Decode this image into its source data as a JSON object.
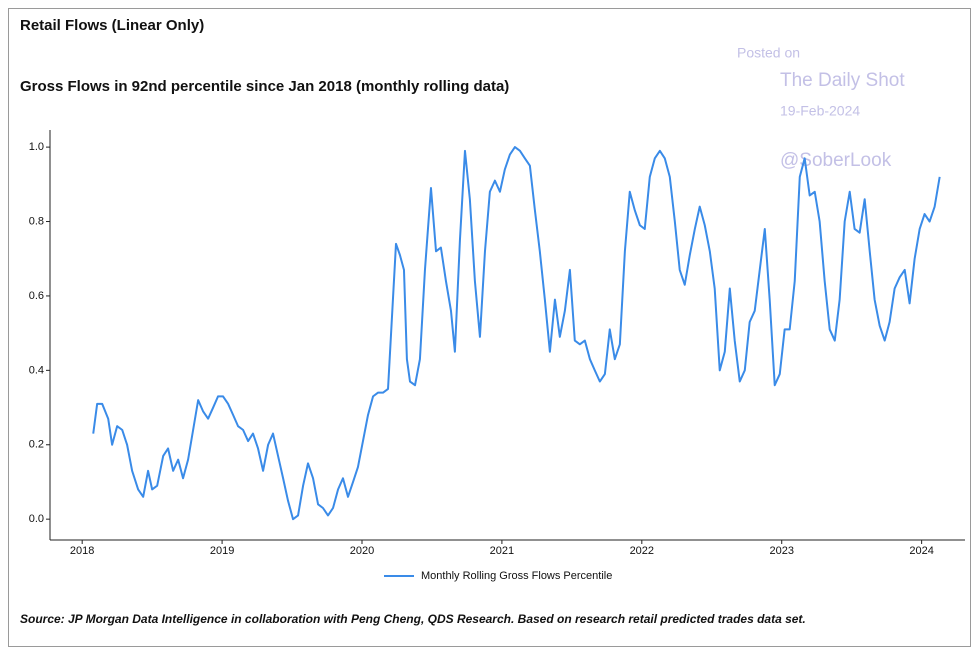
{
  "chart_data": {
    "type": "line",
    "title": "Retail Flows (Linear Only)",
    "subtitle": "Gross Flows in 92nd percentile since Jan 2018 (monthly rolling data)",
    "annotations": [
      "Posted on",
      "The Daily Shot",
      "19-Feb-2024",
      "@SoberLook"
    ],
    "source": "Source: JP Morgan Data Intelligence in collaboration with Peng Cheng, QDS Research. Based on research retail predicted trades data set.",
    "x": [
      2018.079,
      2018.107,
      2018.143,
      2018.186,
      2018.214,
      2018.25,
      2018.286,
      2018.321,
      2018.357,
      2018.4,
      2018.436,
      2018.471,
      2018.5,
      2018.536,
      2018.579,
      2018.614,
      2018.65,
      2018.686,
      2018.721,
      2018.757,
      2018.793,
      2018.829,
      2018.864,
      2018.9,
      2018.936,
      2018.971,
      2019.007,
      2019.043,
      2019.079,
      2019.114,
      2019.15,
      2019.186,
      2019.221,
      2019.257,
      2019.293,
      2019.329,
      2019.364,
      2019.4,
      2019.436,
      2019.471,
      2019.507,
      2019.543,
      2019.579,
      2019.614,
      2019.65,
      2019.686,
      2019.721,
      2019.757,
      2019.793,
      2019.829,
      2019.864,
      2019.9,
      2019.936,
      2019.971,
      2020.007,
      2020.043,
      2020.079,
      2020.114,
      2020.15,
      2020.186,
      2020.221,
      2020.243,
      2020.271,
      2020.3,
      2020.321,
      2020.343,
      2020.379,
      2020.414,
      2020.45,
      2020.493,
      2020.529,
      2020.564,
      2020.6,
      2020.636,
      2020.664,
      2020.7,
      2020.736,
      2020.771,
      2020.807,
      2020.843,
      2020.879,
      2020.914,
      2020.95,
      2020.986,
      2021.021,
      2021.057,
      2021.093,
      2021.129,
      2021.164,
      2021.2,
      2021.236,
      2021.271,
      2021.307,
      2021.343,
      2021.379,
      2021.414,
      2021.45,
      2021.486,
      2021.521,
      2021.557,
      2021.593,
      2021.629,
      2021.664,
      2021.7,
      2021.736,
      2021.771,
      2021.807,
      2021.843,
      2021.879,
      2021.914,
      2021.95,
      2021.986,
      2022.021,
      2022.057,
      2022.093,
      2022.129,
      2022.164,
      2022.2,
      2022.236,
      2022.271,
      2022.307,
      2022.343,
      2022.379,
      2022.414,
      2022.45,
      2022.486,
      2022.521,
      2022.557,
      2022.593,
      2022.629,
      2022.664,
      2022.7,
      2022.736,
      2022.771,
      2022.807,
      2022.843,
      2022.879,
      2022.914,
      2022.95,
      2022.986,
      2023.021,
      2023.057,
      2023.093,
      2023.129,
      2023.164,
      2023.2,
      2023.236,
      2023.271,
      2023.307,
      2023.343,
      2023.379,
      2023.414,
      2023.45,
      2023.486,
      2023.521,
      2023.557,
      2023.593,
      2023.629,
      2023.664,
      2023.7,
      2023.736,
      2023.771,
      2023.807,
      2023.843,
      2023.879,
      2023.914,
      2023.95,
      2023.986,
      2024.021,
      2024.057,
      2024.093,
      2024.129
    ],
    "series": [
      {
        "name": "Monthly Rolling Gross Flows Percentile",
        "color": "#3a8be8",
        "values": [
          0.23,
          0.31,
          0.31,
          0.27,
          0.2,
          0.25,
          0.24,
          0.2,
          0.13,
          0.08,
          0.06,
          0.13,
          0.08,
          0.09,
          0.17,
          0.19,
          0.13,
          0.16,
          0.11,
          0.16,
          0.24,
          0.32,
          0.29,
          0.27,
          0.3,
          0.33,
          0.33,
          0.31,
          0.28,
          0.25,
          0.24,
          0.21,
          0.23,
          0.19,
          0.13,
          0.2,
          0.23,
          0.17,
          0.11,
          0.05,
          0.0,
          0.01,
          0.09,
          0.15,
          0.11,
          0.04,
          0.03,
          0.01,
          0.03,
          0.08,
          0.11,
          0.06,
          0.1,
          0.14,
          0.21,
          0.28,
          0.33,
          0.34,
          0.34,
          0.35,
          0.59,
          0.74,
          0.71,
          0.67,
          0.43,
          0.37,
          0.36,
          0.43,
          0.67,
          0.89,
          0.72,
          0.73,
          0.64,
          0.56,
          0.45,
          0.75,
          0.99,
          0.86,
          0.64,
          0.49,
          0.72,
          0.88,
          0.91,
          0.88,
          0.94,
          0.98,
          1.0,
          0.99,
          0.97,
          0.95,
          0.83,
          0.72,
          0.59,
          0.45,
          0.59,
          0.49,
          0.56,
          0.67,
          0.48,
          0.47,
          0.48,
          0.43,
          0.4,
          0.37,
          0.39,
          0.51,
          0.43,
          0.47,
          0.72,
          0.88,
          0.83,
          0.79,
          0.78,
          0.92,
          0.97,
          0.99,
          0.97,
          0.92,
          0.8,
          0.67,
          0.63,
          0.71,
          0.78,
          0.84,
          0.79,
          0.72,
          0.62,
          0.4,
          0.45,
          0.62,
          0.48,
          0.37,
          0.4,
          0.53,
          0.56,
          0.67,
          0.78,
          0.59,
          0.36,
          0.39,
          0.51,
          0.51,
          0.64,
          0.92,
          0.97,
          0.87,
          0.88,
          0.8,
          0.64,
          0.51,
          0.48,
          0.59,
          0.8,
          0.88,
          0.78,
          0.77,
          0.86,
          0.72,
          0.59,
          0.52,
          0.48,
          0.53,
          0.62,
          0.65,
          0.67,
          0.58,
          0.7,
          0.78,
          0.82,
          0.8,
          0.84,
          0.92
        ]
      }
    ],
    "xlim": [
      2017.77,
      2024.31
    ],
    "xticks": [
      2018,
      2019,
      2020,
      2021,
      2022,
      2023,
      2024
    ],
    "ylim": [
      -0.056,
      1.046
    ],
    "yticks": [
      {
        "value": 0,
        "label": "0.0"
      },
      {
        "value": 0.2,
        "label": "0.2"
      },
      {
        "value": 0.4,
        "label": "0.4"
      },
      {
        "value": 0.6,
        "label": "0.6"
      },
      {
        "value": 0.8,
        "label": "0.8"
      },
      {
        "value": 1,
        "label": "1.0"
      }
    ],
    "grid": false,
    "legend": "bottom"
  }
}
